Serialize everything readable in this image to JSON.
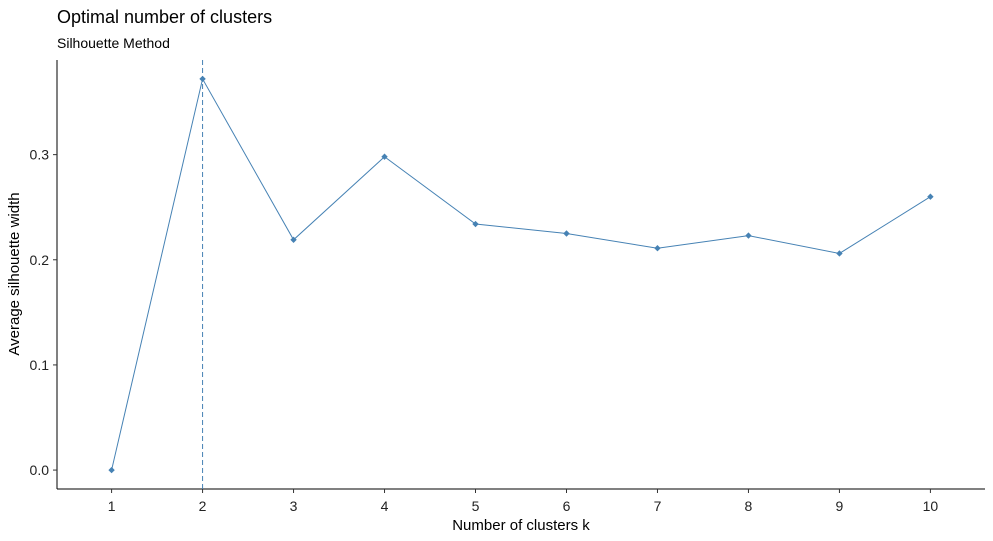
{
  "chart_data": {
    "type": "line",
    "title": "Optimal number of clusters",
    "subtitle": "Silhouette Method",
    "xlabel": "Number of clusters k",
    "ylabel": "Average silhouette width",
    "x": [
      1,
      2,
      3,
      4,
      5,
      6,
      7,
      8,
      9,
      10
    ],
    "x_tick_labels": [
      "1",
      "2",
      "3",
      "4",
      "5",
      "6",
      "7",
      "8",
      "9",
      "10"
    ],
    "y_ticks": [
      0.0,
      0.1,
      0.2,
      0.3
    ],
    "y_tick_labels": [
      "0.0",
      "0.1",
      "0.2",
      "0.3"
    ],
    "xlim": [
      0.4,
      10.6
    ],
    "ylim": [
      -0.018,
      0.39
    ],
    "series": [
      {
        "values": [
          0.0,
          0.372,
          0.219,
          0.298,
          0.234,
          0.225,
          0.211,
          0.223,
          0.206,
          0.26
        ]
      }
    ],
    "reference_line": {
      "x": 2,
      "style": "dashed"
    },
    "grid": false,
    "legend": "none",
    "colors": {
      "series": "#4682B4",
      "reference": "#4682B4",
      "marker": "#4682B4"
    }
  }
}
